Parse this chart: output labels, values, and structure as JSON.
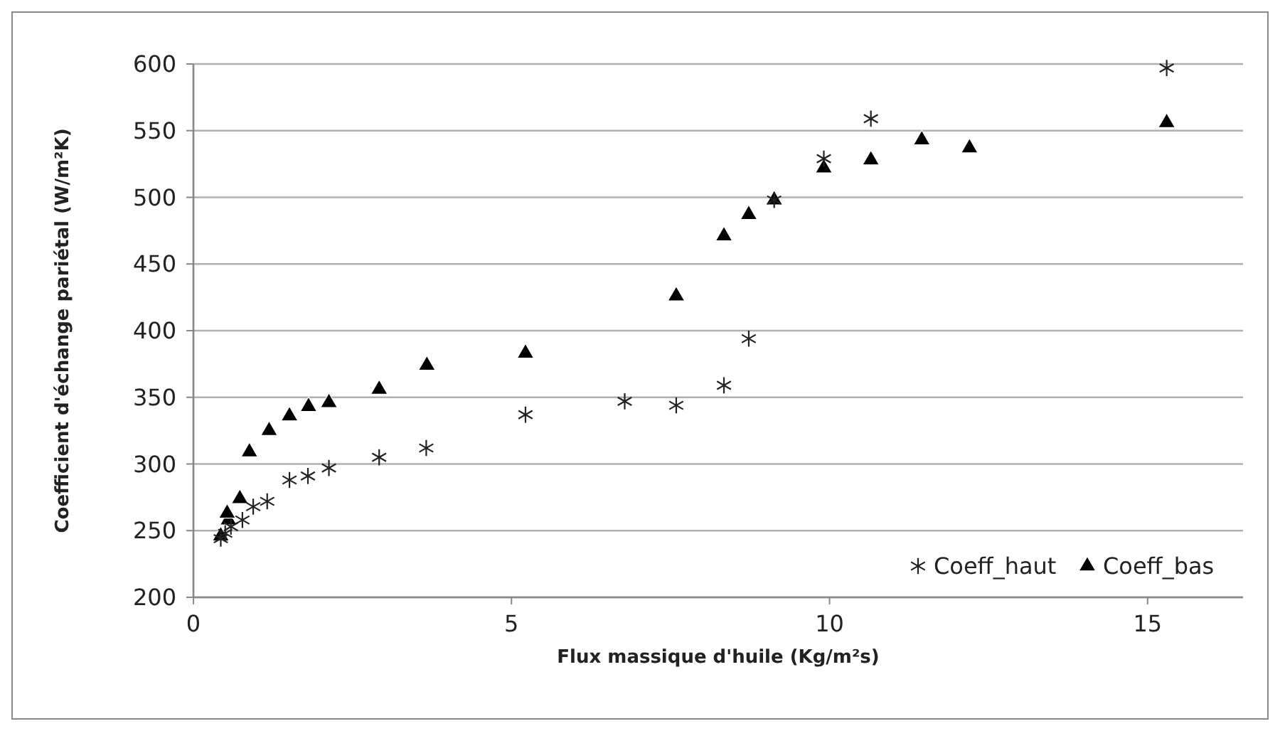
{
  "chart_data": {
    "type": "scatter",
    "xlabel": "Flux massique d'huile (Kg/m²s)",
    "ylabel": "Coefficient d'échange pariétal (W/m²K)",
    "xlim": [
      0,
      16.5
    ],
    "xticks": [
      0,
      5,
      10,
      15
    ],
    "ylim": [
      200,
      600
    ],
    "yticks": [
      200,
      250,
      300,
      350,
      400,
      450,
      500,
      550,
      600
    ],
    "grid": "y",
    "legend": "bottom right",
    "series": [
      {
        "name": "Coeff_haut",
        "color": "#222222",
        "marker": "cross",
        "x": [
          0.43,
          0.5,
          0.59,
          0.77,
          0.94,
          1.16,
          1.51,
          1.8,
          2.13,
          2.92,
          3.66,
          5.22,
          6.78,
          7.59,
          8.34,
          8.73,
          9.13,
          9.91,
          10.65,
          15.3
        ],
        "values": [
          244,
          248,
          253,
          258,
          268,
          272,
          288,
          291,
          297,
          305,
          312,
          337,
          347,
          344,
          359,
          394,
          498,
          529,
          559,
          597
        ]
      },
      {
        "name": "Coeff_bas",
        "color": "#000000",
        "marker": "triangle",
        "x": [
          0.43,
          0.55,
          0.53,
          0.73,
          0.88,
          1.19,
          1.51,
          1.81,
          2.13,
          2.92,
          3.67,
          5.22,
          7.59,
          8.34,
          8.73,
          9.13,
          9.91,
          10.65,
          11.45,
          12.2,
          15.3
        ],
        "values": [
          246,
          258,
          263,
          274,
          309,
          325,
          336,
          343,
          346,
          356,
          374,
          383,
          426,
          471,
          487,
          498,
          522,
          528,
          543,
          537,
          556
        ]
      }
    ]
  }
}
